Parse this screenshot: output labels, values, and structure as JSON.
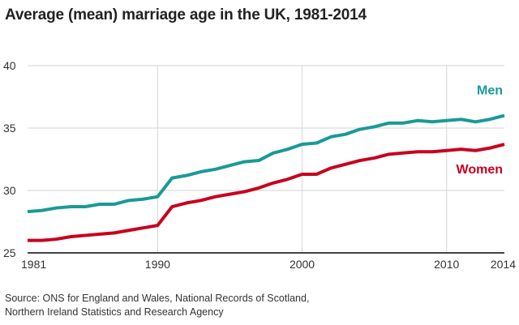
{
  "chart_data": {
    "type": "line",
    "title": "Average (mean) marriage age in the UK, 1981-2014",
    "xlabel": "",
    "ylabel": "",
    "ylim": [
      25,
      40
    ],
    "xlim": [
      1981,
      2014
    ],
    "y_ticks": [
      "25",
      "30",
      "35",
      "40"
    ],
    "x_ticks": [
      "1981",
      "1990",
      "2000",
      "2010",
      "2014"
    ],
    "grid": true,
    "legend": "inline labels right",
    "x": [
      1981,
      1982,
      1983,
      1984,
      1985,
      1986,
      1987,
      1988,
      1989,
      1990,
      1991,
      1992,
      1993,
      1994,
      1995,
      1996,
      1997,
      1998,
      1999,
      2000,
      2001,
      2002,
      2003,
      2004,
      2005,
      2006,
      2007,
      2008,
      2009,
      2010,
      2011,
      2012,
      2013,
      2014
    ],
    "series": [
      {
        "name": "Men",
        "color": "#1a9a96",
        "values": [
          28.3,
          28.4,
          28.6,
          28.7,
          28.7,
          28.9,
          28.9,
          29.2,
          29.3,
          29.5,
          31.0,
          31.2,
          31.5,
          31.7,
          32.0,
          32.3,
          32.4,
          33.0,
          33.3,
          33.7,
          33.8,
          34.3,
          34.5,
          34.9,
          35.1,
          35.4,
          35.4,
          35.6,
          35.5,
          35.6,
          35.7,
          35.5,
          35.7,
          36.0
        ]
      },
      {
        "name": "Women",
        "color": "#c8001e",
        "values": [
          26.0,
          26.0,
          26.1,
          26.3,
          26.4,
          26.5,
          26.6,
          26.8,
          27.0,
          27.2,
          28.7,
          29.0,
          29.2,
          29.5,
          29.7,
          29.9,
          30.2,
          30.6,
          30.9,
          31.3,
          31.3,
          31.8,
          32.1,
          32.4,
          32.6,
          32.9,
          33.0,
          33.1,
          33.1,
          33.2,
          33.3,
          33.2,
          33.4,
          33.7
        ]
      }
    ]
  },
  "source": {
    "line1": "Source: ONS for England and Wales, National Records of Scotland,",
    "line2": "Northern Ireland Statistics and Research Agency"
  }
}
